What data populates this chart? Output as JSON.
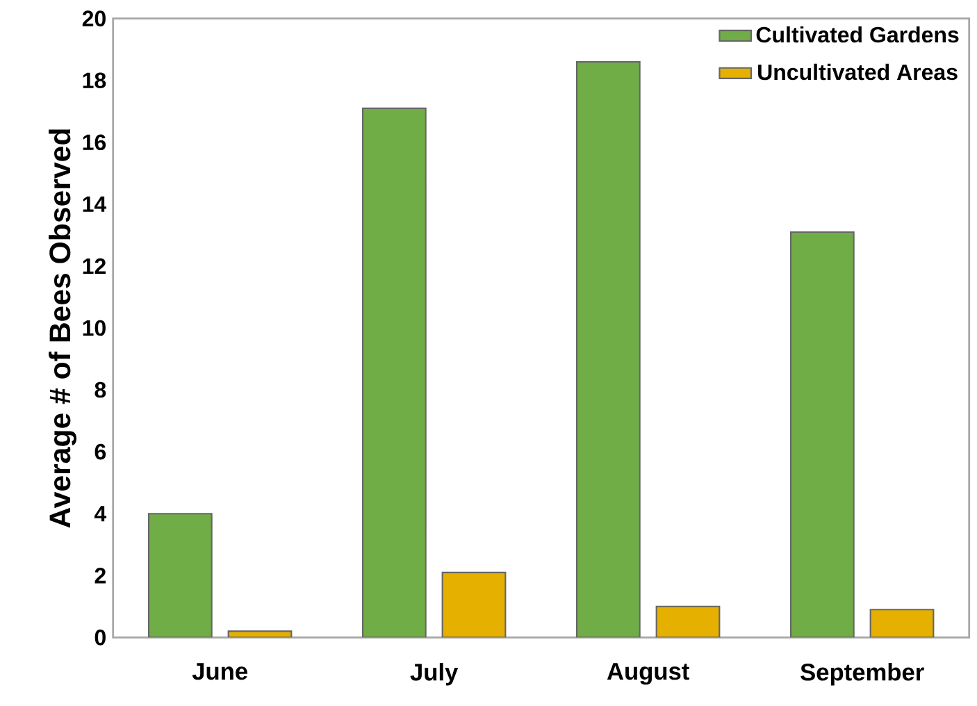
{
  "chart_data": {
    "type": "bar",
    "ylabel": "Average # of Bees Observed",
    "categories": [
      "June",
      "July",
      "August",
      "September"
    ],
    "series": [
      {
        "name": "Cultivated Gardens",
        "color": "#70ad47",
        "values": [
          4.0,
          17.1,
          18.6,
          13.1
        ]
      },
      {
        "name": "Uncultivated Areas",
        "color": "#e6b000",
        "values": [
          0.2,
          2.1,
          1.0,
          0.9
        ]
      }
    ],
    "ylim": [
      0,
      20
    ],
    "yticks": [
      0,
      2,
      4,
      6,
      8,
      10,
      12,
      14,
      16,
      18,
      20
    ],
    "grid": false,
    "legend": "top right"
  }
}
